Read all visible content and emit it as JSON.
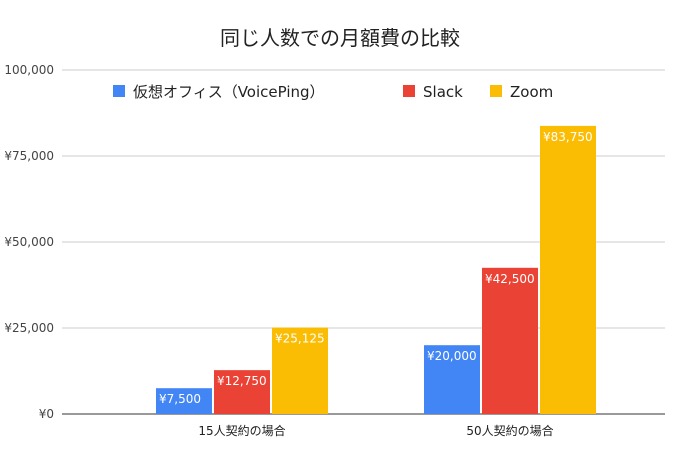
{
  "chart_data": {
    "type": "bar",
    "title": "同じ人数での月額費の比較",
    "categories": [
      "15人契約の場合",
      "50人契約の場合"
    ],
    "series": [
      {
        "name": "仮想オフィス（VoicePing）",
        "color": "#4285F4",
        "values": [
          7500,
          20000
        ],
        "labels": [
          "¥7,500",
          "¥20,000"
        ]
      },
      {
        "name": "Slack",
        "color": "#EA4335",
        "values": [
          12750,
          42500
        ],
        "labels": [
          "¥12,750",
          "¥42,500"
        ]
      },
      {
        "name": "Zoom",
        "color": "#FBBC04",
        "values": [
          25125,
          83750
        ],
        "labels": [
          "¥25,125",
          "¥83,750"
        ]
      }
    ],
    "ylim": [
      0,
      100000
    ],
    "yticks": [
      {
        "value": 0,
        "label": "¥0"
      },
      {
        "value": 25000,
        "label": "¥25,000"
      },
      {
        "value": 50000,
        "label": "¥50,000"
      },
      {
        "value": 75000,
        "label": "¥75,000"
      },
      {
        "value": 100000,
        "label": "100,000"
      }
    ],
    "grid": true,
    "legend_position": "top"
  }
}
